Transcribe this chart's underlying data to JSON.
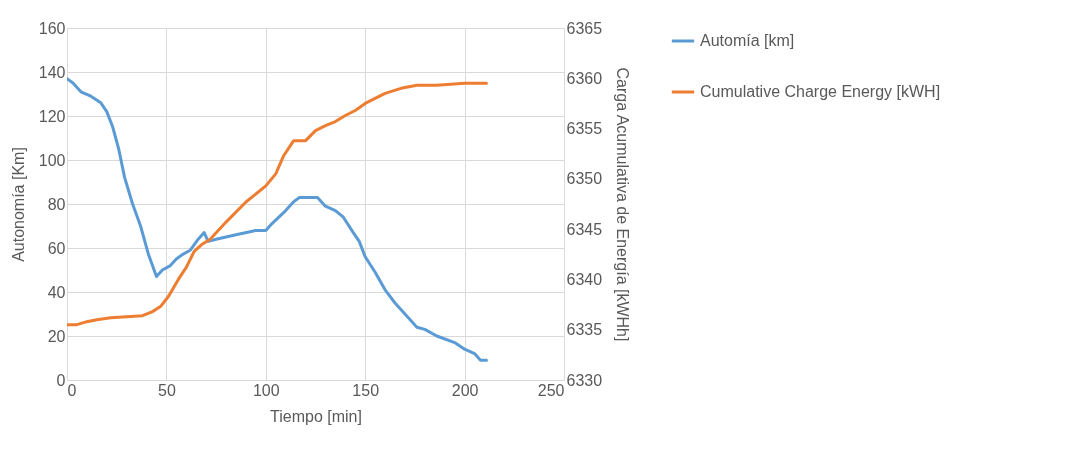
{
  "chart_data": {
    "type": "line",
    "xlabel": "Tiempo [min]",
    "ylabel": "Autonomía [Km]",
    "y2label": "Carga Acumulativa de Energía [kWHh]",
    "xlim": [
      0,
      250
    ],
    "xticks": [
      0,
      50,
      100,
      150,
      200,
      250
    ],
    "ylim": [
      0,
      160
    ],
    "yticks": [
      0,
      20,
      40,
      60,
      80,
      100,
      120,
      140,
      160
    ],
    "y2lim": [
      6330,
      6365
    ],
    "y2ticks": [
      6330,
      6335,
      6340,
      6345,
      6350,
      6355,
      6360,
      6365
    ],
    "grid": true,
    "legend": "right",
    "line_style": "solid",
    "marker": "none",
    "series": [
      {
        "name": "Automía [km]",
        "color": "#5b9bd5",
        "x": [
          0,
          3,
          7,
          12,
          17,
          20,
          23,
          26,
          29,
          33,
          37,
          41,
          45,
          48,
          52,
          55,
          58,
          62,
          66,
          69,
          71,
          75,
          85,
          95,
          100,
          103,
          110,
          114,
          117,
          126,
          130,
          135,
          139,
          144,
          147,
          150,
          155,
          160,
          165,
          170,
          176,
          180,
          186,
          195,
          200,
          205,
          208,
          211
        ],
        "values": [
          137,
          135,
          131,
          129,
          126,
          122,
          115,
          105,
          92,
          80,
          70,
          57,
          47,
          50,
          52,
          55,
          57,
          59,
          64,
          67,
          63,
          64,
          66,
          68,
          68,
          71,
          77,
          81,
          83,
          83,
          79,
          77,
          74,
          67,
          63,
          56,
          49,
          41,
          35,
          30,
          24,
          23,
          20,
          17,
          14,
          12,
          9,
          9
        ]
      },
      {
        "name": "Cumulative Charge Energy [kWH]",
        "color": "#ed7d31",
        "axis": "y2",
        "x": [
          0,
          5,
          10,
          15,
          22,
          38,
          43,
          47,
          51,
          56,
          60,
          64,
          68,
          72,
          80,
          90,
          100,
          105,
          109,
          114,
          120,
          125,
          130,
          135,
          140,
          145,
          150,
          155,
          160,
          168,
          176,
          186,
          200,
          211
        ],
        "values": [
          6335.5,
          6335.5,
          6335.8,
          6336,
          6336.2,
          6336.4,
          6336.8,
          6337.3,
          6338.3,
          6340,
          6341.2,
          6342.8,
          6343.5,
          6344,
          6345.7,
          6347.7,
          6349.3,
          6350.5,
          6352.3,
          6353.8,
          6353.8,
          6354.8,
          6355.3,
          6355.7,
          6356.3,
          6356.8,
          6357.5,
          6358,
          6358.5,
          6359,
          6359.3,
          6359.3,
          6359.5,
          6359.5
        ]
      }
    ]
  }
}
